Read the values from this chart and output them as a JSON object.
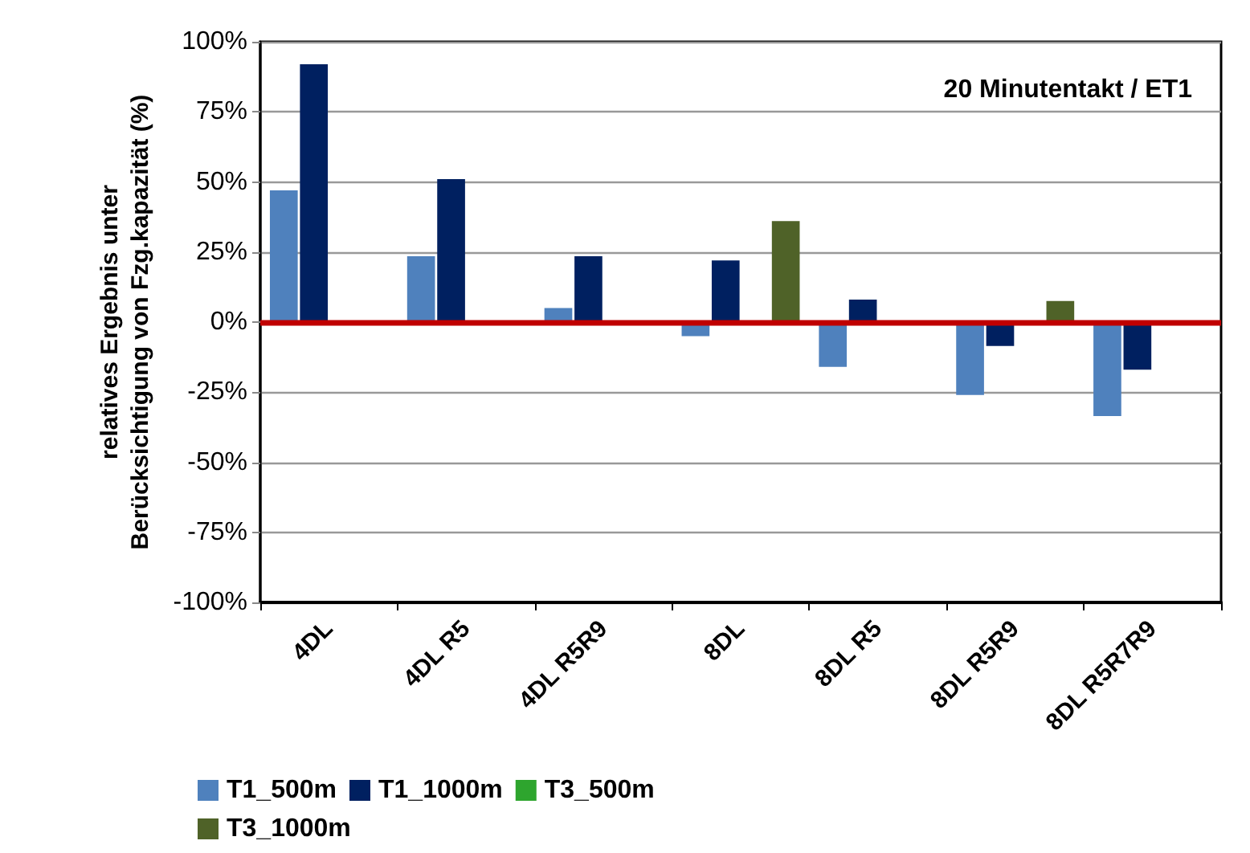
{
  "chart_data": {
    "type": "bar",
    "ylabel": "relatives Ergebnis unter\nBerücksichtigung von Fzg.kapazität (%)",
    "categories": [
      "4DL",
      "4DL R5",
      "4DL R5R9",
      "8DL",
      "8DL R5",
      "8DL R5R9",
      "8DL R5R7R9"
    ],
    "series": [
      {
        "name": "T1_500m",
        "color": "#4f81bd",
        "values": [
          47,
          23.5,
          5,
          -5,
          -16,
          -26,
          -33.5
        ]
      },
      {
        "name": "T1_1000m",
        "color": "#002060",
        "values": [
          92,
          51,
          23.5,
          22,
          8,
          -8.5,
          -17
        ]
      },
      {
        "name": "T3_500m",
        "color": "#2ea52e",
        "values": [
          null,
          null,
          null,
          null,
          null,
          null,
          null
        ]
      },
      {
        "name": "T3_1000m",
        "color": "#4f6228",
        "values": [
          null,
          null,
          null,
          36,
          null,
          7.5,
          null
        ]
      }
    ],
    "ylim": [
      -100,
      100
    ],
    "yticks": [
      {
        "value": -100,
        "label": "-100%"
      },
      {
        "value": -75,
        "label": "-75%"
      },
      {
        "value": -50,
        "label": "-50%"
      },
      {
        "value": -25,
        "label": "-25%"
      },
      {
        "value": 0,
        "label": "0%"
      },
      {
        "value": 25,
        "label": "25%"
      },
      {
        "value": 50,
        "label": "50%"
      },
      {
        "value": 75,
        "label": "75%"
      },
      {
        "value": 100,
        "label": "100%"
      }
    ],
    "ref_lines": [
      {
        "axis": "y",
        "value": 0,
        "color": "#c00000"
      }
    ],
    "annotations": [
      "20 Minutentakt / ET1"
    ],
    "grid": "y",
    "legend": "bottom"
  }
}
